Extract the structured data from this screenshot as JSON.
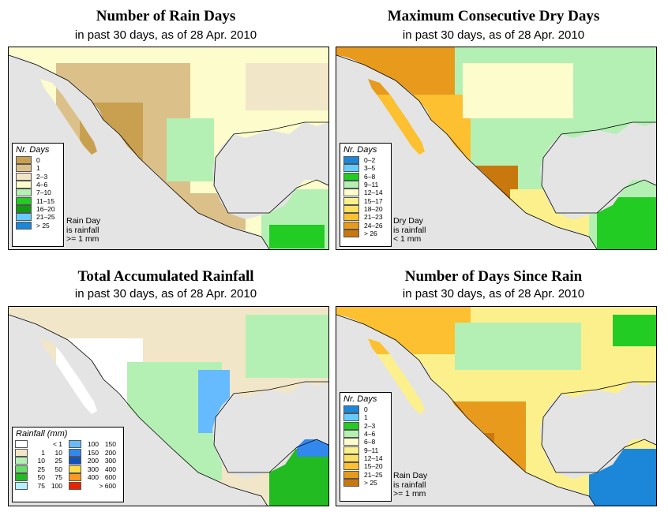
{
  "panels": [
    {
      "id": "rain-days",
      "title": "Number of Rain Days",
      "subtitle": "in past 30 days, as of  28 Apr. 2010",
      "legend_title": "Nr. Days",
      "legend": [
        {
          "label": "0",
          "color": "#c8a050"
        },
        {
          "label": "1",
          "color": "#dcc08a"
        },
        {
          "label": "2–3",
          "color": "#f2e6c8"
        },
        {
          "label": "4–6",
          "color": "#fcfccc"
        },
        {
          "label": "7–10",
          "color": "#b4f0b4"
        },
        {
          "label": "11–15",
          "color": "#22cc22"
        },
        {
          "label": "16–20",
          "color": "#139a13"
        },
        {
          "label": "21–25",
          "color": "#66ccff"
        },
        {
          "label": "> 25",
          "color": "#1c86d8"
        }
      ],
      "note": [
        "Rain Day",
        "is rainfall",
        ">= 1 mm"
      ]
    },
    {
      "id": "dry-days",
      "title": "Maximum Consecutive Dry Days",
      "subtitle": "in past 30 days, as of  28 Apr. 2010",
      "legend_title": "Nr. Days",
      "legend": [
        {
          "label": "0–2",
          "color": "#1c86d8"
        },
        {
          "label": "3–5",
          "color": "#66ccff"
        },
        {
          "label": "6–8",
          "color": "#22cc22"
        },
        {
          "label": "9–11",
          "color": "#b4f0b4"
        },
        {
          "label": "12–14",
          "color": "#fcfccc"
        },
        {
          "label": "15–17",
          "color": "#fcf08c"
        },
        {
          "label": "18–20",
          "color": "#fce060"
        },
        {
          "label": "21–23",
          "color": "#fcc030"
        },
        {
          "label": "24–26",
          "color": "#e89a1c"
        },
        {
          "label": "> 26",
          "color": "#c8780c"
        }
      ],
      "note": [
        "Dry Day",
        "is rainfall",
        "< 1 mm"
      ]
    },
    {
      "id": "rainfall",
      "title": "Total Accumulated Rainfall",
      "subtitle": "in past 30 days, as of  28 Apr. 2010",
      "legend_title": "Rainfall (mm)",
      "legend_left": [
        {
          "lo": "",
          "hi": "< 1",
          "color": "#ffffff"
        },
        {
          "lo": "1",
          "hi": "10",
          "color": "#f2e6c8"
        },
        {
          "lo": "10",
          "hi": "25",
          "color": "#b4f0b4"
        },
        {
          "lo": "25",
          "hi": "50",
          "color": "#66dd66"
        },
        {
          "lo": "50",
          "hi": "75",
          "color": "#22bb22"
        },
        {
          "lo": "75",
          "hi": "100",
          "color": "#b4f0ff"
        }
      ],
      "legend_right": [
        {
          "lo": "100",
          "hi": "150",
          "color": "#66bbff"
        },
        {
          "lo": "150",
          "hi": "200",
          "color": "#3388ee"
        },
        {
          "lo": "200",
          "hi": "300",
          "color": "#1155bb"
        },
        {
          "lo": "300",
          "hi": "400",
          "color": "#ffdd44"
        },
        {
          "lo": "400",
          "hi": "600",
          "color": "#ff9922"
        },
        {
          "lo": "",
          "hi": "> 600",
          "color": "#ee2200"
        }
      ]
    },
    {
      "id": "since-rain",
      "title": "Number of Days Since Rain",
      "subtitle": "in past 30 days, as of  28 Apr. 2010",
      "legend_title": "Nr. Days",
      "legend": [
        {
          "label": "0",
          "color": "#1c86d8"
        },
        {
          "label": "1",
          "color": "#66ccff"
        },
        {
          "label": "2–3",
          "color": "#22cc22"
        },
        {
          "label": "4–6",
          "color": "#b4f0b4"
        },
        {
          "label": "6–8",
          "color": "#fcfccc"
        },
        {
          "label": "9–11",
          "color": "#fcf08c"
        },
        {
          "label": "12–14",
          "color": "#fce060"
        },
        {
          "label": "15–20",
          "color": "#fcc030"
        },
        {
          "label": "21–25",
          "color": "#e89a1c"
        },
        {
          "label": "> 25",
          "color": "#c8780c"
        }
      ],
      "note": [
        "Rain Day",
        "is rainfall",
        ">= 1 mm"
      ]
    }
  ]
}
